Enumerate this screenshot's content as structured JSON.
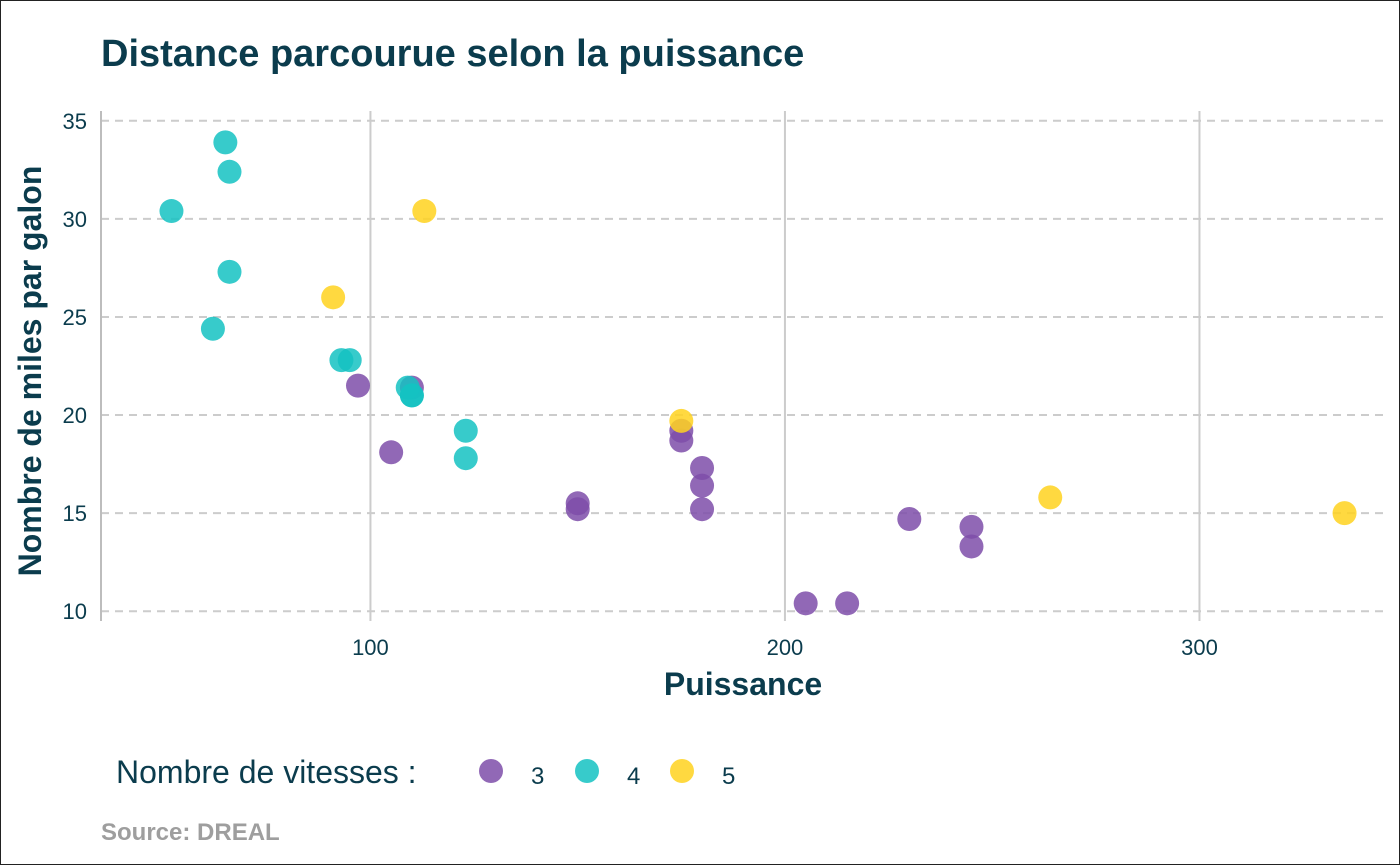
{
  "chart_data": {
    "type": "scatter",
    "title": "Distance parcourue selon la puissance",
    "xlabel": "Puissance",
    "ylabel": "Nombre de miles par galon",
    "xlim": [
      35,
      345
    ],
    "ylim": [
      9.5,
      35.5
    ],
    "xticks": [
      100,
      200,
      300
    ],
    "yticks": [
      10,
      15,
      20,
      25,
      30,
      35
    ],
    "grid": true,
    "legend": {
      "title": "Nombre de vitesses :",
      "placement": "bottom",
      "entries": [
        "3",
        "4",
        "5"
      ]
    },
    "colors": {
      "3": "#7e4ea9",
      "4": "#14c2c2",
      "5": "#ffd21f"
    },
    "series": [
      {
        "name": "3",
        "points": [
          {
            "x": 110,
            "y": 21.4
          },
          {
            "x": 175,
            "y": 18.7
          },
          {
            "x": 105,
            "y": 18.1
          },
          {
            "x": 245,
            "y": 14.3
          },
          {
            "x": 180,
            "y": 16.4
          },
          {
            "x": 180,
            "y": 17.3
          },
          {
            "x": 180,
            "y": 15.2
          },
          {
            "x": 205,
            "y": 10.4
          },
          {
            "x": 215,
            "y": 10.4
          },
          {
            "x": 230,
            "y": 14.7
          },
          {
            "x": 97,
            "y": 21.5
          },
          {
            "x": 150,
            "y": 15.5
          },
          {
            "x": 150,
            "y": 15.2
          },
          {
            "x": 245,
            "y": 13.3
          },
          {
            "x": 175,
            "y": 19.2
          }
        ]
      },
      {
        "name": "4",
        "points": [
          {
            "x": 110,
            "y": 21.0
          },
          {
            "x": 110,
            "y": 21.0
          },
          {
            "x": 93,
            "y": 22.8
          },
          {
            "x": 62,
            "y": 24.4
          },
          {
            "x": 95,
            "y": 22.8
          },
          {
            "x": 123,
            "y": 19.2
          },
          {
            "x": 123,
            "y": 17.8
          },
          {
            "x": 66,
            "y": 32.4
          },
          {
            "x": 52,
            "y": 30.4
          },
          {
            "x": 65,
            "y": 33.9
          },
          {
            "x": 66,
            "y": 27.3
          },
          {
            "x": 109,
            "y": 21.4
          }
        ]
      },
      {
        "name": "5",
        "points": [
          {
            "x": 91,
            "y": 26.0
          },
          {
            "x": 113,
            "y": 30.4
          },
          {
            "x": 264,
            "y": 15.8
          },
          {
            "x": 175,
            "y": 19.7
          },
          {
            "x": 335,
            "y": 15.0
          }
        ]
      }
    ]
  },
  "source": "Source: DREAL"
}
